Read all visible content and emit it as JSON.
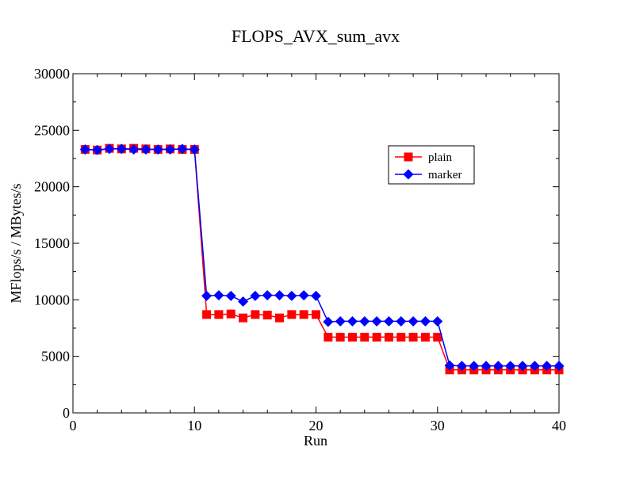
{
  "chart_data": {
    "type": "line",
    "title": "FLOPS_AVX_sum_avx",
    "xlabel": "Run",
    "ylabel": "MFlops/s / MBytes/s",
    "xlim": [
      0,
      40
    ],
    "ylim": [
      0,
      30000
    ],
    "xticks": [
      0,
      10,
      20,
      30,
      40
    ],
    "yticks": [
      0,
      5000,
      10000,
      15000,
      20000,
      25000,
      30000
    ],
    "x": [
      1,
      2,
      3,
      4,
      5,
      6,
      7,
      8,
      9,
      10,
      11,
      12,
      13,
      14,
      15,
      16,
      17,
      18,
      19,
      20,
      21,
      22,
      23,
      24,
      25,
      26,
      27,
      28,
      29,
      30,
      31,
      32,
      33,
      34,
      35,
      36,
      37,
      38,
      39,
      40
    ],
    "series": [
      {
        "name": "plain",
        "color": "#ff0000",
        "marker": "square",
        "values": [
          23300,
          23250,
          23400,
          23350,
          23400,
          23350,
          23300,
          23350,
          23300,
          23300,
          8700,
          8700,
          8750,
          8400,
          8700,
          8650,
          8400,
          8700,
          8700,
          8700,
          6700,
          6700,
          6700,
          6700,
          6700,
          6700,
          6700,
          6700,
          6700,
          6700,
          3800,
          3800,
          3800,
          3800,
          3800,
          3800,
          3800,
          3800,
          3800,
          3800
        ]
      },
      {
        "name": "marker",
        "color": "#0000ff",
        "marker": "diamond",
        "values": [
          23300,
          23250,
          23350,
          23350,
          23300,
          23300,
          23300,
          23300,
          23350,
          23300,
          10350,
          10400,
          10350,
          9850,
          10350,
          10400,
          10400,
          10350,
          10400,
          10350,
          8050,
          8100,
          8100,
          8100,
          8100,
          8100,
          8100,
          8100,
          8100,
          8100,
          4200,
          4150,
          4150,
          4150,
          4150,
          4150,
          4150,
          4150,
          4150,
          4150
        ]
      }
    ],
    "legend_position": "top-right"
  }
}
